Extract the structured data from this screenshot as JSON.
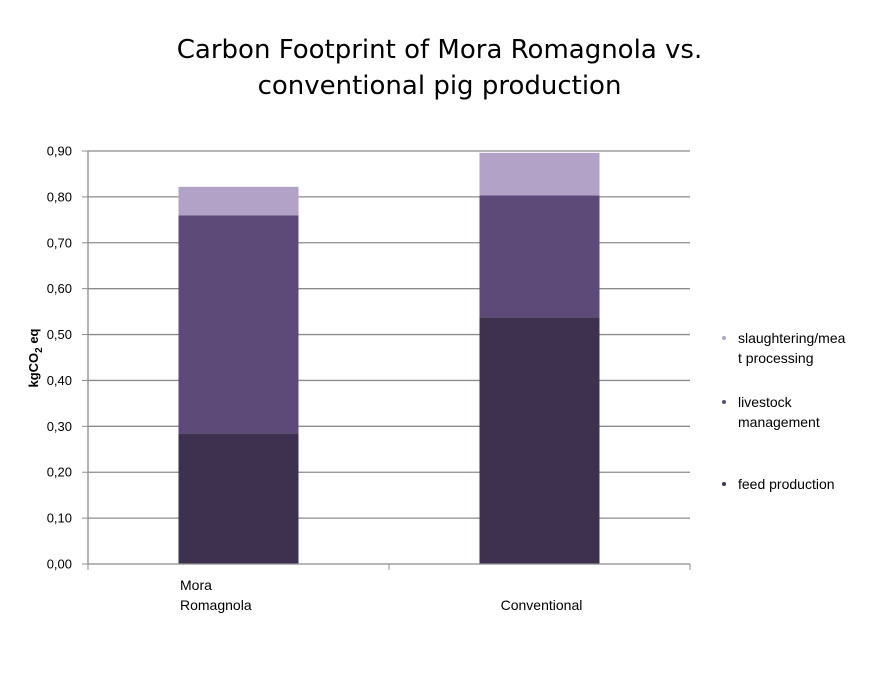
{
  "chart_data": {
    "type": "bar",
    "stacked": true,
    "title_lines": [
      "Carbon Footprint of Mora Romagnola vs.",
      "conventional pig production"
    ],
    "ylabel": "kgCO2 eq",
    "ylabel_main": "kgCO",
    "ylabel_sub": "2",
    "ylabel_tail": " eq",
    "ylim": [
      0,
      0.9
    ],
    "yticks": [
      "0,00",
      "0,10",
      "0,20",
      "0,30",
      "0,40",
      "0,50",
      "0,60",
      "0,70",
      "0,80",
      "0,90"
    ],
    "grid": true,
    "legend_position": "right",
    "categories": [
      "Mora Romagnola",
      "Conventional"
    ],
    "category_label_lines": [
      [
        "Mora",
        "Romagnola"
      ],
      [
        "Conventional"
      ]
    ],
    "series": [
      {
        "name": "feed production",
        "color": "#3e3150",
        "values": [
          0.285,
          0.537
        ]
      },
      {
        "name": "livestock management",
        "color": "#5e4a79",
        "values": [
          0.475,
          0.266
        ]
      },
      {
        "name": "slaughtering/meat processing",
        "color": "#b3a2c8",
        "values": [
          0.062,
          0.093
        ]
      }
    ],
    "legend_labels": [
      "slaughtering/mea\nt processing",
      "livestock\nmanagement",
      "feed production"
    ]
  }
}
